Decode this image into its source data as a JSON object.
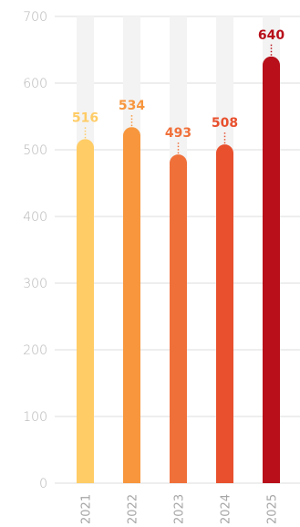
{
  "chart_data": {
    "type": "bar",
    "title": "",
    "xlabel": "",
    "ylabel": "",
    "categories": [
      "2021",
      "2022",
      "2023",
      "2024",
      "2025"
    ],
    "values": [
      516,
      534,
      493,
      508,
      640
    ],
    "value_labels": [
      "516",
      "534",
      "493",
      "508",
      "640"
    ],
    "bar_colors": [
      "#FFCC66",
      "#F7963D",
      "#F0703A",
      "#E8502E",
      "#B80F1A"
    ],
    "track_color": "#F3F3F3",
    "grid_color": "#DCDCDC",
    "ylim": [
      0,
      700
    ],
    "yticks": [
      0,
      100,
      200,
      300,
      400,
      500,
      600,
      700
    ],
    "ytick_labels": [
      "0",
      "100",
      "200",
      "300",
      "400",
      "500",
      "600",
      "700"
    ],
    "grid": true,
    "legend": "none"
  }
}
